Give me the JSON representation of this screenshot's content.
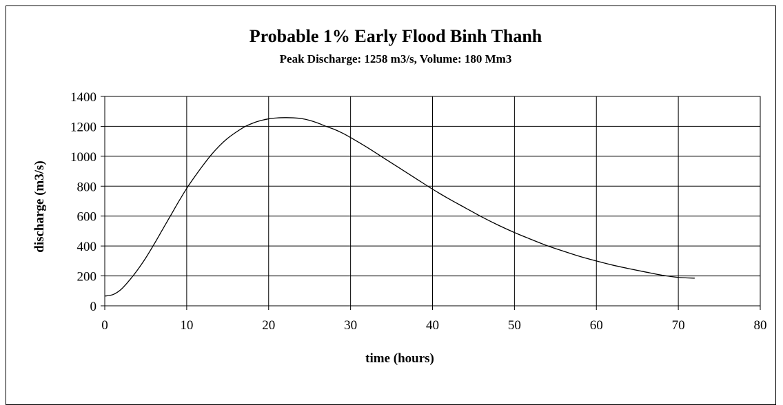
{
  "chart_data": {
    "type": "line",
    "title": "Probable 1% Early Flood Binh Thanh",
    "subtitle": "Peak Discharge: 1258 m3/s, Volume: 180 Mm3",
    "xlabel": "time (hours)",
    "ylabel": "discharge (m3/s)",
    "xlim": [
      0,
      80
    ],
    "ylim": [
      0,
      1400
    ],
    "xticks": [
      "0",
      "10",
      "20",
      "30",
      "40",
      "50",
      "60",
      "70",
      "80"
    ],
    "yticks": [
      "0",
      "200",
      "400",
      "600",
      "800",
      "1000",
      "1200",
      "1400"
    ],
    "grid": true,
    "legend": "none",
    "line_color": "#000000",
    "series": [
      {
        "x": [
          0,
          1,
          2,
          3,
          4,
          5,
          6,
          7,
          8,
          9,
          10,
          11,
          12,
          13,
          14,
          15,
          16,
          17,
          18,
          19,
          20,
          21,
          22,
          23,
          24,
          25,
          26,
          27,
          28,
          29,
          30,
          32,
          34,
          36,
          38,
          40,
          42,
          44,
          46,
          48,
          50,
          52,
          54,
          56,
          58,
          60,
          62,
          64,
          66,
          68,
          70,
          72
        ],
        "y": [
          65,
          75,
          110,
          170,
          240,
          320,
          410,
          505,
          600,
          695,
          785,
          865,
          940,
          1010,
          1070,
          1120,
          1160,
          1195,
          1220,
          1238,
          1250,
          1256,
          1258,
          1257,
          1252,
          1240,
          1222,
          1200,
          1180,
          1155,
          1125,
          1060,
          990,
          920,
          850,
          780,
          715,
          655,
          595,
          540,
          490,
          445,
          402,
          365,
          330,
          300,
          272,
          248,
          226,
          205,
          190,
          185
        ]
      }
    ]
  }
}
